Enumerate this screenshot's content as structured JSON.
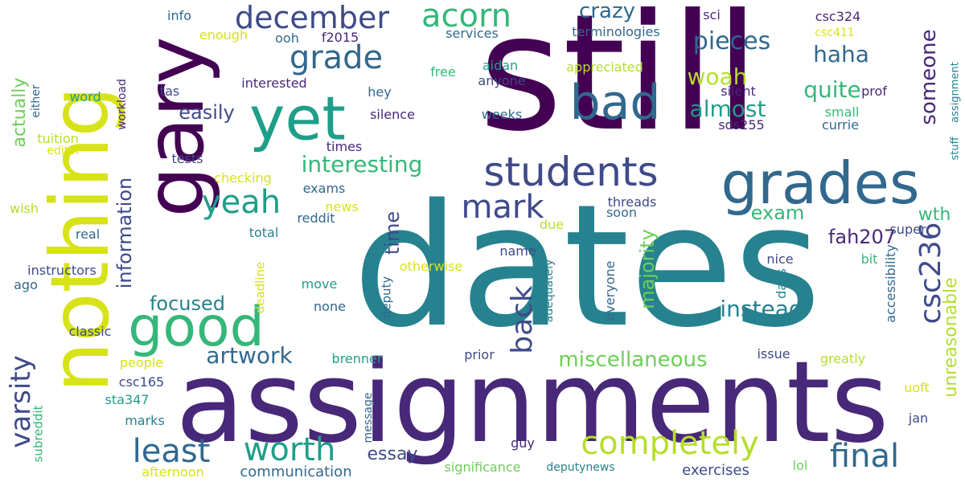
{
  "words": [
    "still",
    "dates",
    "assignments",
    "nothing",
    "gary",
    "yet",
    "grades",
    "students",
    "bad",
    "good",
    "december",
    "acorn",
    "grade",
    "yeah",
    "mark",
    "worth",
    "least",
    "completely",
    "final",
    "back",
    "csc236",
    "varsity",
    "interesting",
    "pieces",
    "crazy",
    "haha",
    "woah",
    "almost",
    "quite",
    "someone",
    "easily",
    "actually",
    "information",
    "time",
    "majority",
    "exam",
    "fah207",
    "instead",
    "focused",
    "artwork",
    "miscellaneous",
    "unreasonable",
    "wth",
    "essay",
    "communication",
    "significance",
    "deputynews",
    "exercises",
    "afternoon",
    "lol",
    "uoft",
    "jan",
    "greatly",
    "issue",
    "prior",
    "brenner",
    "classic",
    "people",
    "csc165",
    "sta347",
    "marks",
    "subreddit",
    "message",
    "guy",
    "ago",
    "instructors",
    "real",
    "wish",
    "editor",
    "tuition",
    "word",
    "either",
    "workload",
    "tas",
    "interested",
    "hey",
    "silence",
    "times",
    "tests",
    "checking",
    "exams",
    "news",
    "reddit",
    "total",
    "move",
    "none",
    "deadline",
    "deputy",
    "otherwise",
    "adequately",
    "everyone",
    "days",
    "accessibility",
    "bit",
    "nice",
    "super",
    "soon",
    "threads",
    "due",
    "name",
    "free",
    "anyone",
    "aidan",
    "appreciated",
    "weeks",
    "silent",
    "prof",
    "small",
    "currie",
    "sds255",
    "stuff",
    "assignment",
    "csc324",
    "csc411",
    "sci",
    "terminologies",
    "services",
    "ooh",
    "f2015",
    "enough",
    "info"
  ],
  "palette": [
    "#440154",
    "#482878",
    "#3e4a89",
    "#31688e",
    "#26828e",
    "#1f9e89",
    "#35b779",
    "#6ece58",
    "#b5de2b",
    "#d8e219"
  ]
}
